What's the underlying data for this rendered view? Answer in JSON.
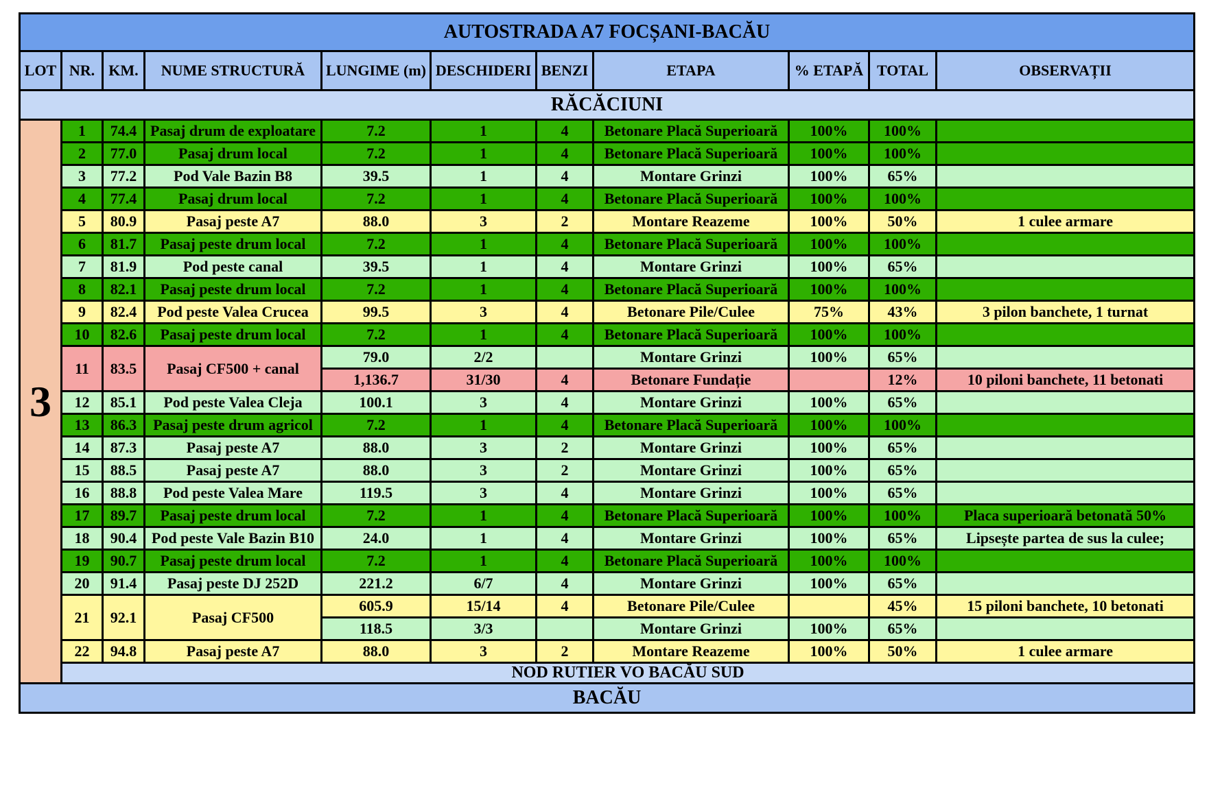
{
  "title": "AUTOSTRADA A7 FOCȘANI-BACĂU",
  "columns": [
    "LOT",
    "NR.",
    "KM.",
    "NUME STRUCTURĂ",
    "LUNGIME (m)",
    "DESCHIDERI",
    "BENZI",
    "ETAPA",
    "% ETAPĂ",
    "TOTAL",
    "OBSERVAȚII"
  ],
  "section": "RĂCĂCIUNI",
  "lot": "3",
  "lot_color": "#f5c6a9",
  "rows": [
    {
      "nr": "1",
      "km": "74.4",
      "name": "Pasaj drum de exploatare",
      "color": "#2fb000",
      "parts": [
        {
          "color": "#2fb000",
          "lungime": "7.2",
          "deschideri": "1",
          "benzi": "4",
          "etapa": "Betonare Placă Superioară",
          "etapa_pct": "100%",
          "total": "100%"
        }
      ]
    },
    {
      "nr": "2",
      "km": "77.0",
      "name": "Pasaj drum local",
      "color": "#2fb000",
      "parts": [
        {
          "color": "#2fb000",
          "lungime": "7.2",
          "deschideri": "1",
          "benzi": "4",
          "etapa": "Betonare Placă Superioară",
          "etapa_pct": "100%",
          "total": "100%"
        }
      ]
    },
    {
      "nr": "3",
      "km": "77.2",
      "name": "Pod Vale Bazin B8",
      "color": "#c2f5c6",
      "parts": [
        {
          "color": "#c2f5c6",
          "lungime": "39.5",
          "deschideri": "1",
          "benzi": "4",
          "etapa": "Montare Grinzi",
          "etapa_pct": "100%",
          "total": "65%"
        }
      ]
    },
    {
      "nr": "4",
      "km": "77.4",
      "name": "Pasaj drum local",
      "color": "#2fb000",
      "parts": [
        {
          "color": "#2fb000",
          "lungime": "7.2",
          "deschideri": "1",
          "benzi": "4",
          "etapa": "Betonare Placă Superioară",
          "etapa_pct": "100%",
          "total": "100%"
        }
      ]
    },
    {
      "nr": "5",
      "km": "80.9",
      "name": "Pasaj  peste A7",
      "color": "#fff79e",
      "parts": [
        {
          "color": "#fff79e",
          "lungime": "88.0",
          "deschideri": "3",
          "benzi": "2",
          "etapa": "Montare Reazeme",
          "etapa_pct": "100%",
          "total": "50%",
          "observatii": "1 culee armare"
        }
      ]
    },
    {
      "nr": "6",
      "km": "81.7",
      "name": "Pasaj  peste drum local",
      "color": "#2fb000",
      "parts": [
        {
          "color": "#2fb000",
          "lungime": "7.2",
          "deschideri": "1",
          "benzi": "4",
          "etapa": "Betonare Placă Superioară",
          "etapa_pct": "100%",
          "total": "100%"
        }
      ]
    },
    {
      "nr": "7",
      "km": "81.9",
      "name": "Pod peste canal",
      "color": "#c2f5c6",
      "parts": [
        {
          "color": "#c2f5c6",
          "lungime": "39.5",
          "deschideri": "1",
          "benzi": "4",
          "etapa": "Montare Grinzi",
          "etapa_pct": "100%",
          "total": "65%"
        }
      ]
    },
    {
      "nr": "8",
      "km": "82.1",
      "name": "Pasaj peste drum local",
      "color": "#2fb000",
      "parts": [
        {
          "color": "#2fb000",
          "lungime": "7.2",
          "deschideri": "1",
          "benzi": "4",
          "etapa": "Betonare Placă Superioară",
          "etapa_pct": "100%",
          "total": "100%"
        }
      ]
    },
    {
      "nr": "9",
      "km": "82.4",
      "name": "Pod peste Valea Crucea",
      "color": "#fff79e",
      "parts": [
        {
          "color": "#fff79e",
          "lungime": "99.5",
          "deschideri": "3",
          "benzi": "4",
          "etapa": "Betonare Pile/Culee",
          "etapa_pct": "75%",
          "total": "43%",
          "observatii": "3 pilon banchete, 1 turnat"
        }
      ]
    },
    {
      "nr": "10",
      "km": "82.6",
      "name": "Pasaj peste drum local",
      "color": "#2fb000",
      "parts": [
        {
          "color": "#2fb000",
          "lungime": "7.2",
          "deschideri": "1",
          "benzi": "4",
          "etapa": "Betonare Placă Superioară",
          "etapa_pct": "100%",
          "total": "100%"
        }
      ]
    },
    {
      "nr": "11",
      "km": "83.5",
      "name": "Pasaj CF500 + canal",
      "color": "#f5a5a5",
      "parts": [
        {
          "color": "#c2f5c6",
          "lungime": "79.0",
          "deschideri": "2/2",
          "etapa": "Montare Grinzi",
          "etapa_pct": "100%",
          "total": "65%"
        },
        {
          "color": "#f5a5a5",
          "lungime": "1,136.7",
          "deschideri": "31/30",
          "benzi": "4",
          "etapa": "Betonare Fundație",
          "total": "12%",
          "observatii": "10 piloni banchete, 11 betonati"
        }
      ]
    },
    {
      "nr": "12",
      "km": "85.1",
      "name": "Pod peste Valea Cleja",
      "color": "#c2f5c6",
      "parts": [
        {
          "color": "#c2f5c6",
          "lungime": "100.1",
          "deschideri": "3",
          "benzi": "4",
          "etapa": "Montare Grinzi",
          "etapa_pct": "100%",
          "total": "65%"
        }
      ]
    },
    {
      "nr": "13",
      "km": "86.3",
      "name": "Pasaj peste drum agricol",
      "color": "#2fb000",
      "parts": [
        {
          "color": "#2fb000",
          "lungime": "7.2",
          "deschideri": "1",
          "benzi": "4",
          "etapa": "Betonare Placă Superioară",
          "etapa_pct": "100%",
          "total": "100%"
        }
      ]
    },
    {
      "nr": "14",
      "km": "87.3",
      "name": "Pasaj peste A7",
      "color": "#c2f5c6",
      "parts": [
        {
          "color": "#c2f5c6",
          "lungime": "88.0",
          "deschideri": "3",
          "benzi": "2",
          "etapa": "Montare Grinzi",
          "etapa_pct": "100%",
          "total": "65%"
        }
      ]
    },
    {
      "nr": "15",
      "km": "88.5",
      "name": "Pasaj peste  A7",
      "color": "#c2f5c6",
      "parts": [
        {
          "color": "#c2f5c6",
          "lungime": "88.0",
          "deschideri": "3",
          "benzi": "2",
          "etapa": "Montare Grinzi",
          "etapa_pct": "100%",
          "total": "65%"
        }
      ]
    },
    {
      "nr": "16",
      "km": "88.8",
      "name": "Pod peste Valea Mare",
      "color": "#c2f5c6",
      "parts": [
        {
          "color": "#c2f5c6",
          "lungime": "119.5",
          "deschideri": "3",
          "benzi": "4",
          "etapa": "Montare Grinzi",
          "etapa_pct": "100%",
          "total": "65%"
        }
      ]
    },
    {
      "nr": "17",
      "km": "89.7",
      "name": "Pasaj peste drum local",
      "color": "#2fb000",
      "parts": [
        {
          "color": "#2fb000",
          "lungime": "7.2",
          "deschideri": "1",
          "benzi": "4",
          "etapa": "Betonare Placă Superioară",
          "etapa_pct": "100%",
          "total": "100%",
          "observatii": "Placa superioară betonată 50%"
        }
      ]
    },
    {
      "nr": "18",
      "km": "90.4",
      "name": "Pod peste Vale Bazin B10",
      "color": "#c2f5c6",
      "parts": [
        {
          "color": "#c2f5c6",
          "lungime": "24.0",
          "deschideri": "1",
          "benzi": "4",
          "etapa": "Montare Grinzi",
          "etapa_pct": "100%",
          "total": "65%",
          "observatii": "Lipsește partea de sus la culee;"
        }
      ]
    },
    {
      "nr": "19",
      "km": "90.7",
      "name": "Pasaj peste drum local",
      "color": "#2fb000",
      "parts": [
        {
          "color": "#2fb000",
          "lungime": "7.2",
          "deschideri": "1",
          "benzi": "4",
          "etapa": "Betonare Placă Superioară",
          "etapa_pct": "100%",
          "total": "100%"
        }
      ]
    },
    {
      "nr": "20",
      "km": "91.4",
      "name": "Pasaj peste DJ 252D",
      "color": "#c2f5c6",
      "parts": [
        {
          "color": "#c2f5c6",
          "lungime": "221.2",
          "deschideri": "6/7",
          "benzi": "4",
          "etapa": "Montare Grinzi",
          "etapa_pct": "100%",
          "total": "65%"
        }
      ]
    },
    {
      "nr": "21",
      "km": "92.1",
      "name": "Pasaj  CF500",
      "color": "#fff79e",
      "parts": [
        {
          "color": "#fff79e",
          "lungime": "605.9",
          "deschideri": "15/14",
          "benzi": "4",
          "etapa": "Betonare Pile/Culee",
          "total": "45%",
          "observatii": "15 piloni banchete, 10 betonati"
        },
        {
          "color": "#c2f5c6",
          "lungime": "118.5",
          "deschideri": "3/3",
          "etapa": "Montare Grinzi",
          "etapa_pct": "100%",
          "total": "65%"
        }
      ]
    },
    {
      "nr": "22",
      "km": "94.8",
      "name": "Pasaj peste A7",
      "color": "#fff79e",
      "parts": [
        {
          "color": "#fff79e",
          "lungime": "88.0",
          "deschideri": "3",
          "benzi": "2",
          "etapa": "Montare Reazeme",
          "etapa_pct": "100%",
          "total": "50%",
          "observatii": "1 culee armare"
        }
      ]
    }
  ],
  "node": "NOD RUTIER VO BACĂU SUD",
  "footer": "BACĂU"
}
